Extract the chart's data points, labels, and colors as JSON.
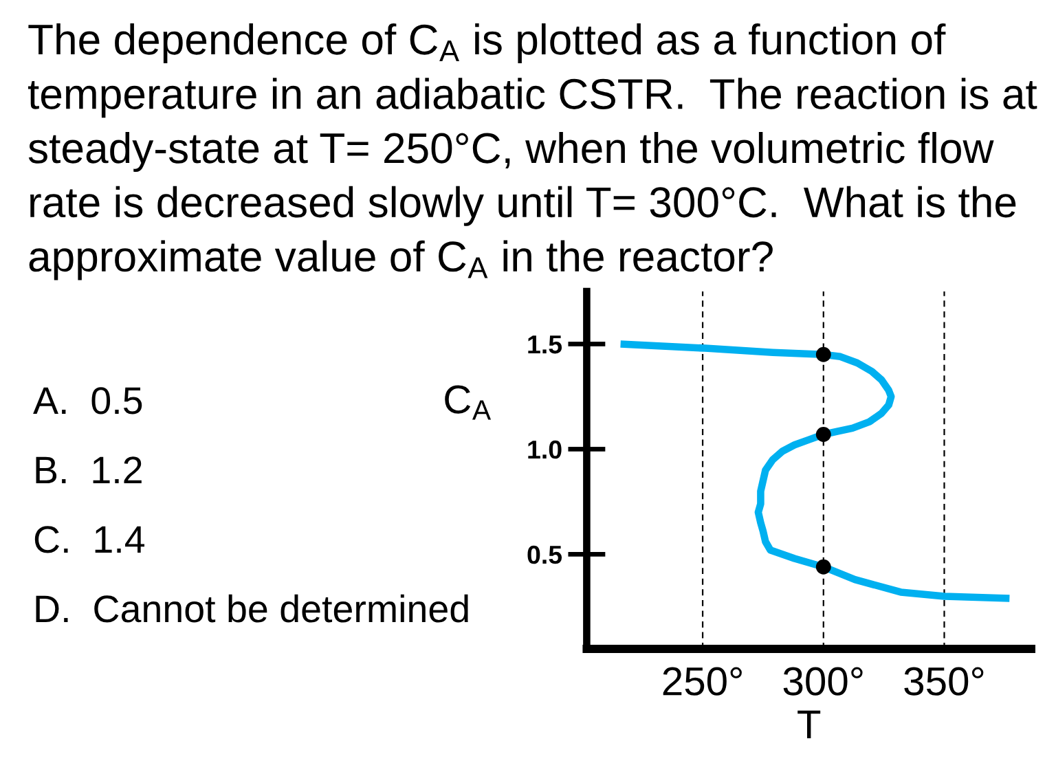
{
  "chart_data": {
    "type": "line",
    "title": "The dependence of C$_{A}$ is plotted as a function of temperature in an adiabatic CSTR.  The reaction is at steady-state at T= 250°C, when the volumetric flow rate is decreased slowly until T= 300°C.  What is the approximate value of C$_{A}$ in the reactor?",
    "xlabel": "T",
    "ylabel": "C$_{A}$",
    "annotations": [
      "A.  0.5",
      "B.  1.2",
      "C.  1.4",
      "D.  Cannot be determined"
    ],
    "xlim": [
      202,
      386
    ],
    "ylim": [
      0.05,
      1.75
    ],
    "xticks": [
      {
        "value": 250,
        "label": "250°"
      },
      {
        "value": 300,
        "label": "300°"
      },
      {
        "value": 350,
        "label": "350°"
      }
    ],
    "yticks": [
      {
        "value": 0.5,
        "label": "0.5"
      },
      {
        "value": 1,
        "label": "1.0"
      },
      {
        "value": 1.5,
        "label": "1.5"
      }
    ],
    "grid": "x",
    "series": [
      {
        "color": "#00b0f0",
        "x": [
          216,
          251,
          279,
          300,
          307,
          314,
          320,
          324,
          327,
          328,
          327,
          324,
          319,
          312,
          306,
          300,
          294,
          288,
          283,
          279,
          276,
          275,
          274,
          274,
          273,
          274,
          275,
          276,
          278,
          288,
          300,
          313,
          332,
          350,
          377
        ],
        "values": [
          1.5,
          1.48,
          1.46,
          1.45,
          1.44,
          1.41,
          1.37,
          1.33,
          1.28,
          1.25,
          1.21,
          1.17,
          1.13,
          1.1,
          1.085,
          1.07,
          1.045,
          1.02,
          0.99,
          0.95,
          0.9,
          0.85,
          0.8,
          0.74,
          0.7,
          0.65,
          0.61,
          0.56,
          0.52,
          0.48,
          0.44,
          0.38,
          0.32,
          0.3,
          0.29
        ]
      },
      {
        "type": "scatter",
        "color": "#000000",
        "marker": "circle",
        "x": [
          300,
          300,
          300
        ],
        "values": [
          1.45,
          1.07,
          0.44
        ]
      }
    ]
  }
}
